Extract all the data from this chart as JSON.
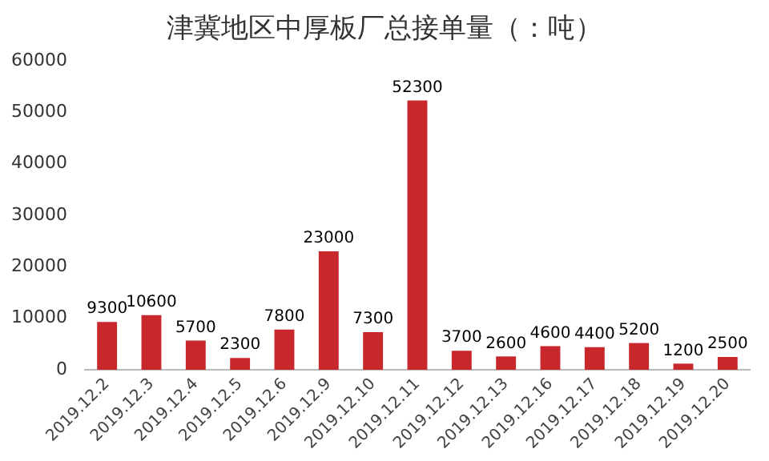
{
  "chart_data": {
    "type": "bar",
    "title": "津冀地区中厚板厂总接单量（：吨）",
    "categories": [
      "2019.12.2",
      "2019.12.3",
      "2019.12.4",
      "2019.12.5",
      "2019.12.6",
      "2019.12.9",
      "2019.12.10",
      "2019.12.11",
      "2019.12.12",
      "2019.12.13",
      "2019.12.16",
      "2019.12.17",
      "2019.12.18",
      "2019.12.19",
      "2019.12.20"
    ],
    "values": [
      9300,
      10600,
      5700,
      2300,
      7800,
      23000,
      7300,
      52300,
      3700,
      2600,
      4600,
      4400,
      5200,
      1200,
      2500
    ],
    "color": "#c8282c",
    "ylim": [
      0,
      60000
    ],
    "yticks": [
      0,
      10000,
      20000,
      30000,
      40000,
      50000,
      60000
    ],
    "grid": false,
    "data_labels": true
  }
}
